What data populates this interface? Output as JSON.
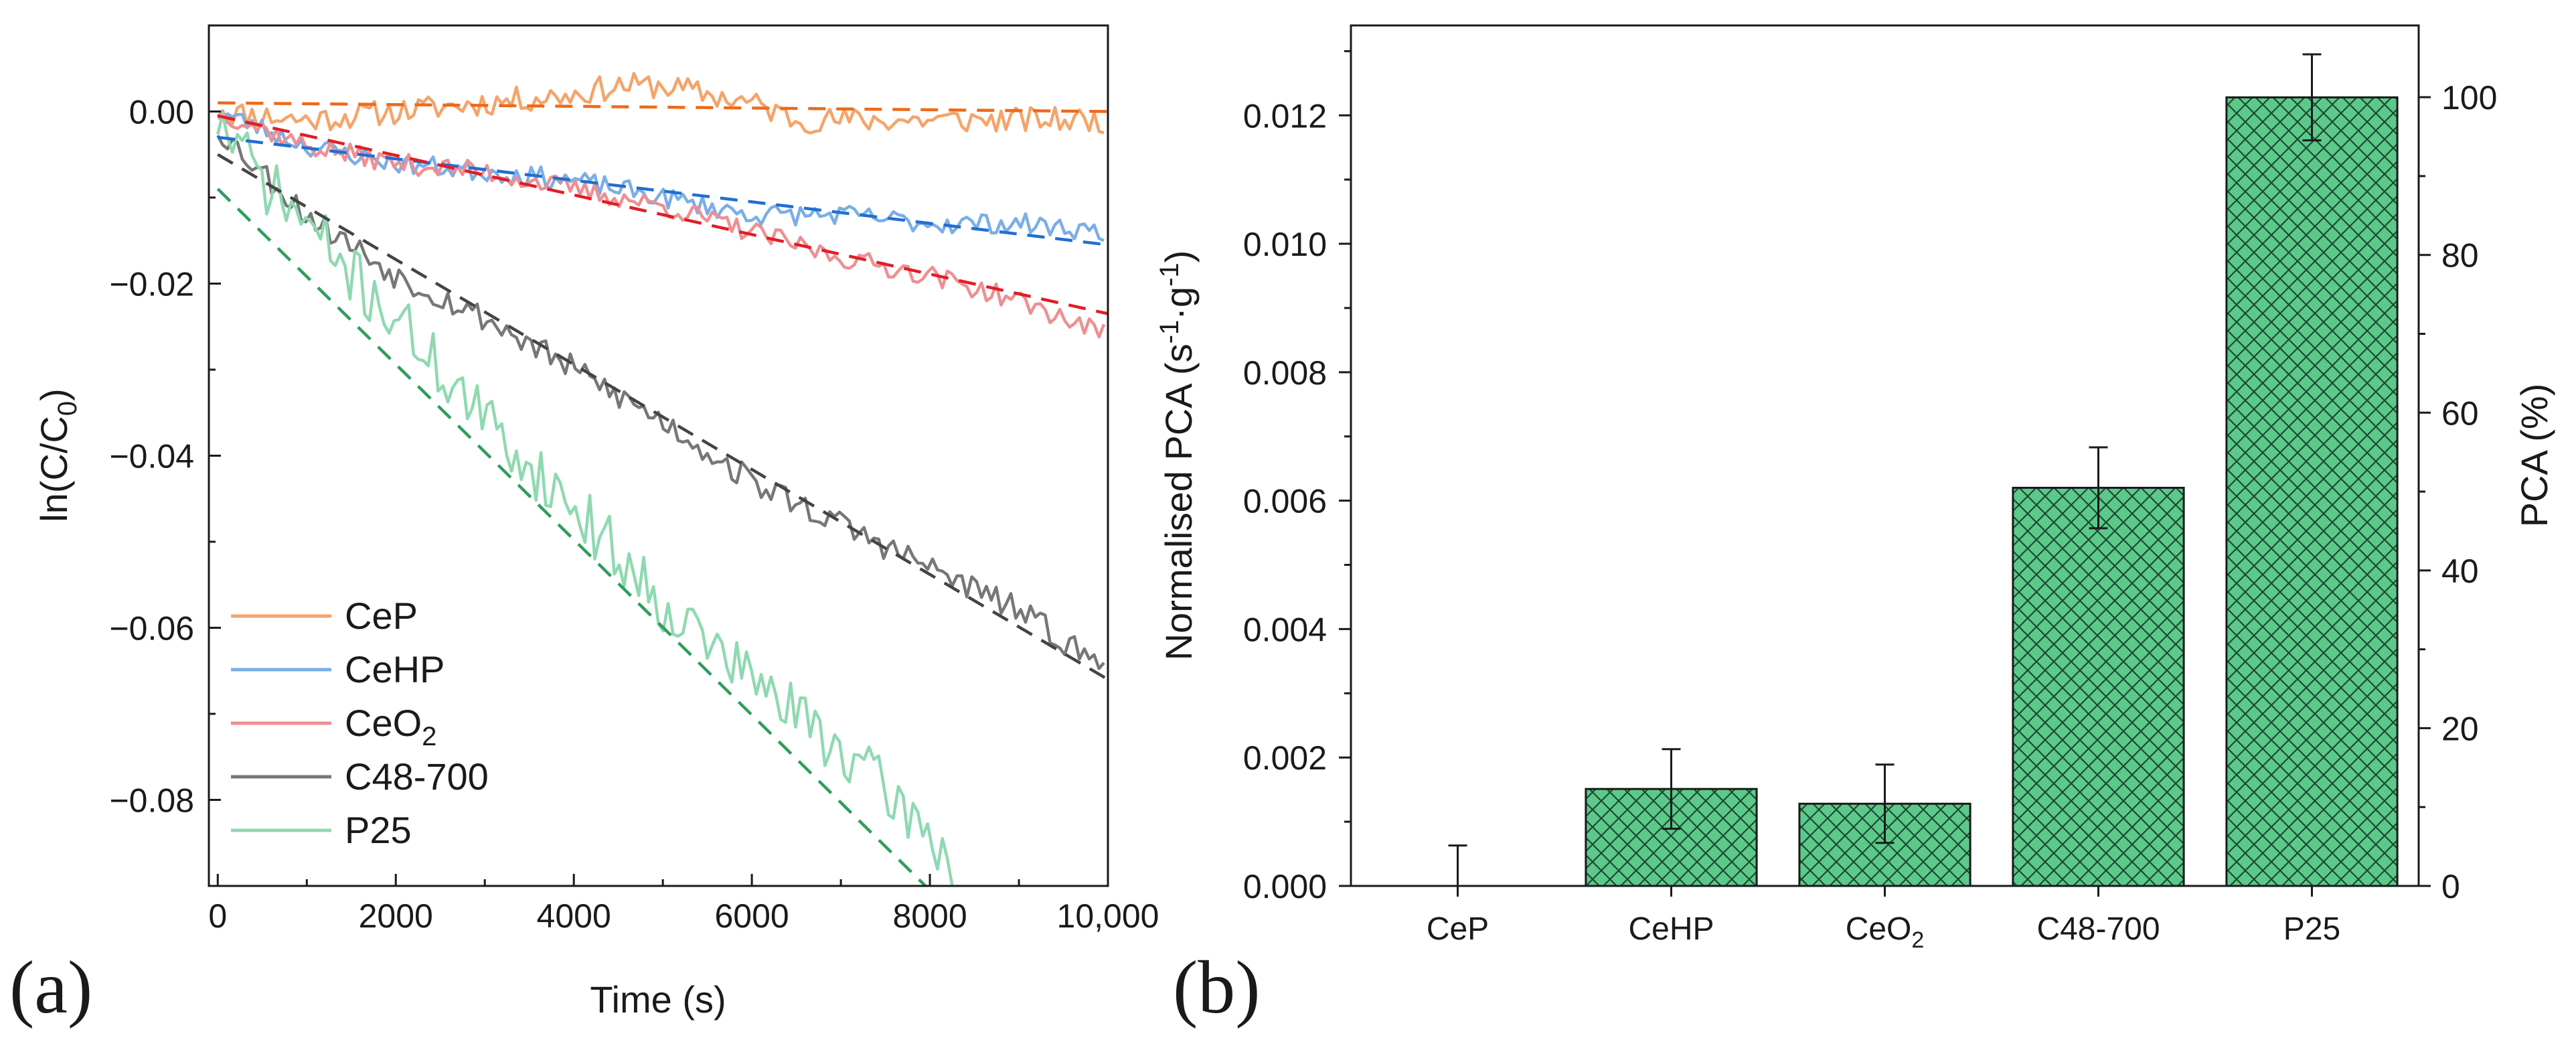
{
  "chart_data": [
    {
      "type": "line",
      "panel_label": "(a)",
      "xlabel": "Time (s)",
      "ylabel": {
        "main": "ln(C/C",
        "sub": "0",
        "close": ")"
      },
      "xlim": [
        -100,
        10000
      ],
      "ylim": [
        -0.09,
        0.01
      ],
      "xticks": [
        0,
        2000,
        4000,
        6000,
        8000,
        10000
      ],
      "xtick_labels": [
        "0",
        "2000",
        "4000",
        "6000",
        "8000",
        "10,000"
      ],
      "yticks": [
        0.0,
        -0.02,
        -0.04,
        -0.06,
        -0.08
      ],
      "ytick_labels": [
        "0.00",
        "−0.02",
        "−0.04",
        "−0.06",
        "−0.08"
      ],
      "legend_position": "bottom-left",
      "series": [
        {
          "name": "CeP",
          "label": {
            "main": "CeP",
            "sub": ""
          },
          "color": "#f4a46a",
          "fit_color": "#ee6a1a",
          "x": [
            0,
            1000,
            2000,
            3000,
            4000,
            4500,
            5000,
            5500,
            6000,
            6500,
            7000,
            8000,
            9000,
            10000
          ],
          "y": [
            0.0,
            -0.001,
            0.0,
            0.001,
            0.002,
            0.003,
            0.003,
            0.002,
            0.001,
            -0.001,
            -0.001,
            -0.001,
            -0.001,
            -0.001
          ],
          "fit": {
            "x": [
              0,
              10000
            ],
            "y": [
              0.001,
              0.0
            ]
          },
          "noise": 0.0015,
          "seed": 11
        },
        {
          "name": "CeHP",
          "label": {
            "main": "CeHP",
            "sub": ""
          },
          "color": "#7aaee8",
          "fit_color": "#1f6fd2",
          "x": [
            0,
            1000,
            2000,
            3000,
            4000,
            5000,
            6000,
            7000,
            8000,
            9000,
            10000
          ],
          "y": [
            0.0,
            -0.004,
            -0.006,
            -0.007,
            -0.008,
            -0.01,
            -0.012,
            -0.012,
            -0.013,
            -0.013,
            -0.014
          ],
          "fit": {
            "x": [
              0,
              10000
            ],
            "y": [
              -0.003,
              -0.0155
            ]
          },
          "noise": 0.0012,
          "seed": 23
        },
        {
          "name": "CeO2",
          "label": {
            "main": "CeO",
            "sub": "2"
          },
          "color": "#ee8f93",
          "fit_color": "#e01e26",
          "x": [
            0,
            1000,
            2000,
            3000,
            4000,
            5000,
            6000,
            7000,
            8000,
            9000,
            10000
          ],
          "y": [
            0.0,
            -0.004,
            -0.006,
            -0.007,
            -0.009,
            -0.011,
            -0.014,
            -0.017,
            -0.019,
            -0.022,
            -0.026
          ],
          "fit": {
            "x": [
              0,
              10000
            ],
            "y": [
              -0.0005,
              -0.0235
            ]
          },
          "noise": 0.0012,
          "seed": 37
        },
        {
          "name": "C48-700",
          "label": {
            "main": "C48-700",
            "sub": ""
          },
          "color": "#777777",
          "fit_color": "#444444",
          "x": [
            0,
            1000,
            2000,
            3000,
            4000,
            5000,
            6000,
            7000,
            8000,
            9000,
            10000
          ],
          "y": [
            -0.002,
            -0.012,
            -0.019,
            -0.024,
            -0.03,
            -0.036,
            -0.043,
            -0.048,
            -0.053,
            -0.058,
            -0.065
          ],
          "fit": {
            "x": [
              0,
              10000
            ],
            "y": [
              -0.005,
              -0.066
            ]
          },
          "noise": 0.0016,
          "seed": 53
        },
        {
          "name": "P25",
          "label": {
            "main": "P25",
            "sub": ""
          },
          "color": "#8fd9b0",
          "fit_color": "#2e9e5b",
          "x": [
            0,
            500,
            1000,
            1500,
            2000,
            3000,
            4000,
            5000,
            6000,
            7000,
            7500,
            8000,
            8300
          ],
          "y": [
            -0.001,
            -0.008,
            -0.013,
            -0.019,
            -0.024,
            -0.036,
            -0.046,
            -0.057,
            -0.066,
            -0.074,
            -0.079,
            -0.084,
            -0.088
          ],
          "fit": {
            "x": [
              0,
              7950
            ],
            "y": [
              -0.009,
              -0.09
            ]
          },
          "noise": 0.0035,
          "seed": 71
        }
      ]
    },
    {
      "type": "bar",
      "panel_label": "(b)",
      "ylabel_left": {
        "pre": "Normalised PCA (s",
        "sup1": "-1",
        "mid": "·g",
        "sup2": "-1",
        "post": ")"
      },
      "ylabel_right": "PCA (%)",
      "categories": [
        "CeP",
        "CeHP",
        "CeO2",
        "C48-700",
        "P25"
      ],
      "category_labels": [
        {
          "main": "CeP",
          "sub": ""
        },
        {
          "main": "CeHP",
          "sub": ""
        },
        {
          "main": "CeO",
          "sub": "2"
        },
        {
          "main": "C48-700",
          "sub": ""
        },
        {
          "main": "P25",
          "sub": ""
        }
      ],
      "values": [
        0.0,
        0.00151,
        0.00128,
        0.0062,
        0.01228
      ],
      "errors": [
        0.00063,
        0.00062,
        0.00061,
        0.00063,
        0.00067
      ],
      "ylim": [
        0,
        0.0134
      ],
      "yticks": [
        0,
        0.002,
        0.004,
        0.006,
        0.008,
        0.01,
        0.012
      ],
      "ytick_labels": [
        "0.000",
        "0.002",
        "0.004",
        "0.006",
        "0.008",
        "0.010",
        "0.012"
      ],
      "y2lim": [
        0,
        109.1
      ],
      "y2ticks": [
        0,
        20,
        40,
        60,
        80,
        100
      ],
      "y2tick_labels": [
        "0",
        "20",
        "40",
        "60",
        "80",
        "100"
      ],
      "bar_color": "#5cc98b",
      "hatch": "cross-hatch"
    }
  ]
}
